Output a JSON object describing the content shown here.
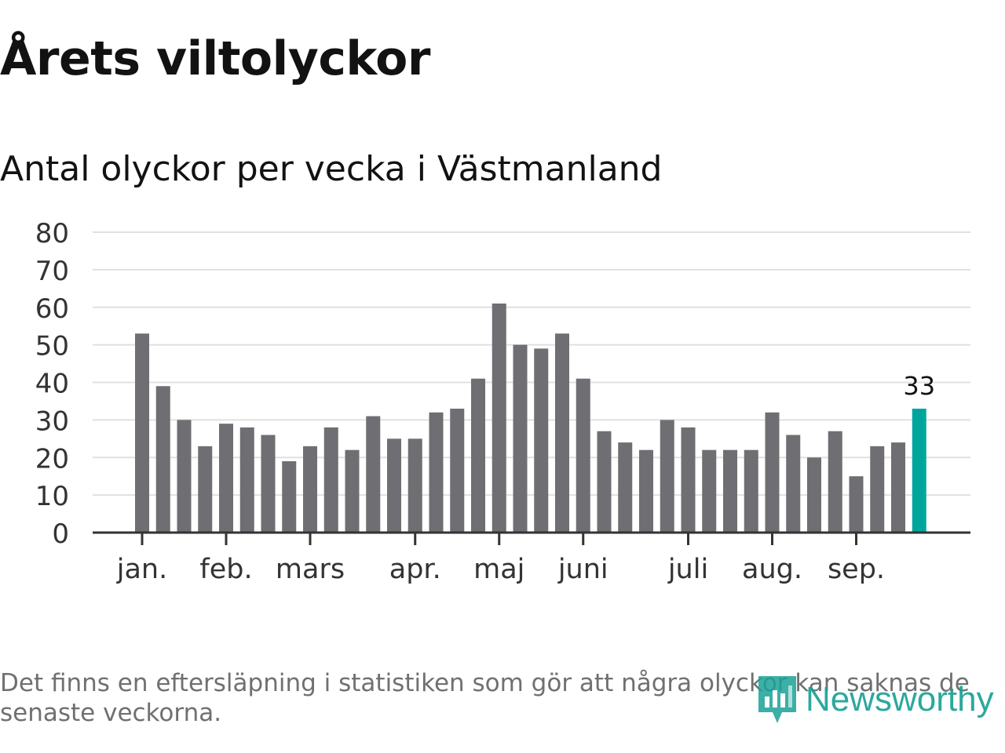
{
  "title": "Årets viltolyckor",
  "subtitle": "Antal olyckor per vecka i Västmanland",
  "chart_data": {
    "type": "bar",
    "ylim": [
      0,
      80
    ],
    "yticks": [
      0,
      10,
      20,
      30,
      40,
      50,
      60,
      70,
      80
    ],
    "values": [
      53,
      39,
      30,
      23,
      29,
      28,
      26,
      19,
      23,
      28,
      22,
      31,
      25,
      25,
      32,
      33,
      41,
      61,
      50,
      49,
      53,
      41,
      27,
      24,
      22,
      30,
      28,
      22,
      22,
      22,
      32,
      26,
      20,
      27,
      15,
      23,
      24,
      33
    ],
    "month_labels": [
      {
        "label": "jan.",
        "week_pos": 0
      },
      {
        "label": "feb.",
        "week_pos": 4
      },
      {
        "label": "mars",
        "week_pos": 8
      },
      {
        "label": "apr.",
        "week_pos": 13
      },
      {
        "label": "maj",
        "week_pos": 17
      },
      {
        "label": "juni",
        "week_pos": 21
      },
      {
        "label": "juli",
        "week_pos": 26
      },
      {
        "label": "aug.",
        "week_pos": 30
      },
      {
        "label": "sep.",
        "week_pos": 34
      }
    ],
    "highlight_label": "33",
    "colors": {
      "bar": "#6e6e73",
      "highlight": "#00a69c",
      "grid": "#e0e0e0",
      "axis": "#333333",
      "text": "#333333"
    }
  },
  "note": "Det finns en eftersläpning i statistiken som gör att några olyckor kan saknas de senaste veckorna.",
  "brand": {
    "name": "Newsworthy",
    "color": "#1aa196"
  }
}
